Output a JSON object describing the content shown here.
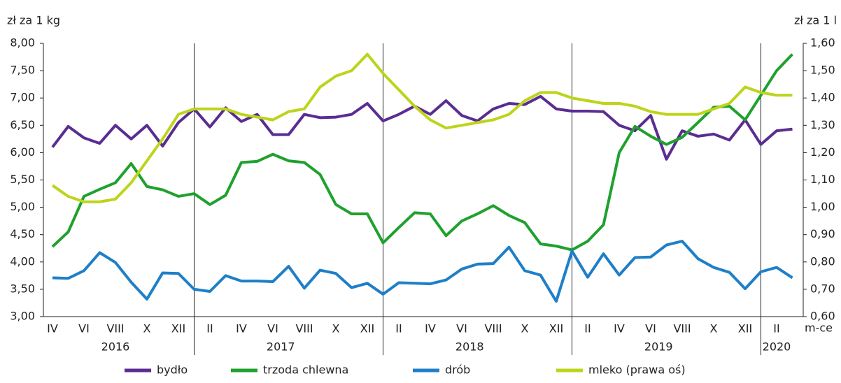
{
  "chart_data": {
    "type": "line",
    "y_label": "zł za 1 kg",
    "y2_label": "zł za 1 l",
    "x_label": "m-ce",
    "categories": [
      "IV",
      null,
      "VI",
      null,
      "VIII",
      null,
      "X",
      null,
      "XII",
      null,
      "II",
      null,
      "IV",
      null,
      "VI",
      null,
      "VIII",
      null,
      "X",
      null,
      "XII",
      null,
      "II",
      null,
      "IV",
      null,
      "VI",
      null,
      "VIII",
      null,
      "X",
      null,
      "XII",
      null,
      "II",
      null,
      "IV",
      null,
      "VI",
      null,
      "VIII",
      null,
      "X",
      null,
      "XII",
      null,
      "II",
      null
    ],
    "years": [
      "2016",
      "2017",
      "2018",
      "2019",
      "2020"
    ],
    "ylim": [
      3,
      8
    ],
    "yticks": [
      {
        "value": 3,
        "label": "3,00"
      },
      {
        "value": 3.5,
        "label": "3,50"
      },
      {
        "value": 4,
        "label": "4,00"
      },
      {
        "value": 4.5,
        "label": "4,50"
      },
      {
        "value": 5,
        "label": "5,00"
      },
      {
        "value": 5.5,
        "label": "5,50"
      },
      {
        "value": 6,
        "label": "6,00"
      },
      {
        "value": 6.5,
        "label": "6,50"
      },
      {
        "value": 7,
        "label": "7,00"
      },
      {
        "value": 7.5,
        "label": "7,50"
      },
      {
        "value": 8,
        "label": "8,00"
      }
    ],
    "y2lim": [
      0.6,
      1.6
    ],
    "y2ticks": [
      {
        "value": 0.6,
        "label": "0,60"
      },
      {
        "value": 0.7,
        "label": "0,70"
      },
      {
        "value": 0.8,
        "label": "0,80"
      },
      {
        "value": 0.9,
        "label": "0,90"
      },
      {
        "value": 1.0,
        "label": "1,00"
      },
      {
        "value": 1.1,
        "label": "1,10"
      },
      {
        "value": 1.2,
        "label": "1,20"
      },
      {
        "value": 1.3,
        "label": "1,30"
      },
      {
        "value": 1.4,
        "label": "1,40"
      },
      {
        "value": 1.5,
        "label": "1,50"
      },
      {
        "value": 1.6,
        "label": "1,60"
      }
    ],
    "legend": "bottom",
    "series": [
      {
        "name": "bydło",
        "color": "#5a2d91",
        "values": [
          6.1,
          6.48,
          6.27,
          6.17,
          6.5,
          6.25,
          6.5,
          6.12,
          6.55,
          6.8,
          6.47,
          6.82,
          6.57,
          6.7,
          6.33,
          6.33,
          6.7,
          6.64,
          6.65,
          6.7,
          6.9,
          6.58,
          6.7,
          6.85,
          6.7,
          6.95,
          6.68,
          6.58,
          6.8,
          6.9,
          6.88,
          7.03,
          6.8,
          6.76,
          6.76,
          6.75,
          6.5,
          6.4,
          6.68,
          5.88,
          6.4,
          6.3,
          6.34,
          6.23,
          6.6,
          6.15,
          6.4,
          6.43
        ]
      },
      {
        "name": "trzoda chlewna",
        "color": "#1fa12e",
        "values": [
          4.28,
          4.55,
          5.2,
          5.33,
          5.45,
          5.8,
          5.38,
          5.32,
          5.2,
          5.25,
          5.05,
          5.22,
          5.82,
          5.84,
          5.97,
          5.85,
          5.82,
          5.6,
          5.05,
          4.88,
          4.88,
          4.35,
          4.63,
          4.9,
          4.88,
          4.48,
          4.75,
          4.88,
          5.03,
          4.85,
          4.72,
          4.33,
          4.29,
          4.22,
          4.38,
          4.68,
          6.0,
          6.48,
          6.3,
          6.15,
          6.28,
          6.55,
          6.83,
          6.85,
          6.6,
          7.05,
          7.5,
          7.8
        ]
      },
      {
        "name": "drób",
        "color": "#1e7fc8",
        "values": [
          3.71,
          3.7,
          3.84,
          4.17,
          3.99,
          3.63,
          3.32,
          3.8,
          3.79,
          3.5,
          3.46,
          3.75,
          3.65,
          3.65,
          3.64,
          3.92,
          3.52,
          3.85,
          3.79,
          3.53,
          3.61,
          3.41,
          3.62,
          3.61,
          3.6,
          3.67,
          3.87,
          3.96,
          3.97,
          4.27,
          3.84,
          3.76,
          3.28,
          4.2,
          3.72,
          4.15,
          3.76,
          4.08,
          4.09,
          4.31,
          4.38,
          4.06,
          3.9,
          3.81,
          3.51,
          3.82,
          3.9,
          3.71
        ]
      },
      {
        "name": "mleko (prawa oś)",
        "color": "#bdd41b",
        "axis": "y2",
        "values": [
          1.08,
          1.04,
          1.02,
          1.02,
          1.03,
          1.09,
          1.17,
          1.25,
          1.34,
          1.36,
          1.36,
          1.36,
          1.34,
          1.33,
          1.32,
          1.35,
          1.36,
          1.44,
          1.48,
          1.5,
          1.56,
          1.49,
          1.43,
          1.37,
          1.32,
          1.29,
          1.3,
          1.31,
          1.32,
          1.34,
          1.39,
          1.42,
          1.42,
          1.4,
          1.39,
          1.38,
          1.38,
          1.37,
          1.35,
          1.34,
          1.34,
          1.34,
          1.36,
          1.38,
          1.44,
          1.42,
          1.41,
          1.41
        ]
      }
    ]
  }
}
